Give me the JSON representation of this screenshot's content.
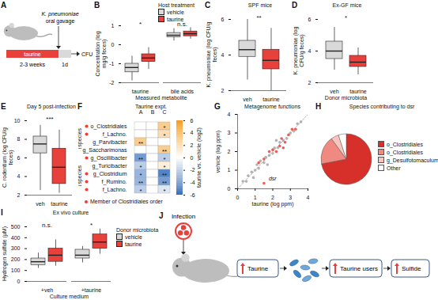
{
  "chart_data": [
    {
      "panel": "B",
      "type": "box",
      "xlabel": "Measured metabolite",
      "ylabel": "Concentration (log mg/g feces)",
      "categories": [
        "taurine",
        "bile acids"
      ],
      "series": [
        {
          "name": "vehicle",
          "color": "#d9d9d9",
          "stats": [
            [
              -1.9,
              -1.45,
              -1.2,
              -1.0,
              -0.6
            ],
            [
              0.2,
              0.4,
              0.5,
              0.62,
              0.85
            ]
          ]
        },
        {
          "name": "taurine",
          "color": "#e8413c",
          "stats": [
            [
              -1.3,
              -0.9,
              -0.7,
              -0.5,
              -0.15
            ],
            [
              0.3,
              0.45,
              0.58,
              0.7,
              0.9
            ]
          ]
        }
      ],
      "legend_title": "Host treatment",
      "legend": "top-right",
      "ylim": [
        -2,
        1
      ],
      "yticks": [
        -2,
        -1,
        0,
        1
      ],
      "annotations": [
        {
          "category": "taurine",
          "text": "*"
        },
        {
          "category": "bile acids",
          "text": "n.s."
        }
      ]
    },
    {
      "panel": "C",
      "type": "box",
      "title": "SPF mice",
      "ylabel": "K. pneumoniae (log CFU/g feces)",
      "categories": [
        "veh",
        "taurine"
      ],
      "colors": [
        "#d9d9d9",
        "#e8413c"
      ],
      "stats": [
        [
          2.6,
          3.9,
          4.3,
          4.8,
          6.0
        ],
        [
          2.0,
          3.2,
          3.7,
          4.3,
          5.5
        ]
      ],
      "ylim": [
        2,
        6
      ],
      "yticks": [
        2,
        4,
        6
      ],
      "annotations": [
        {
          "text": "**"
        }
      ]
    },
    {
      "panel": "D",
      "type": "box",
      "title": "Ex-GF mice",
      "xlabel": "Donor microbiota",
      "ylabel": "K. pneumoniae (log CFU/g feces)",
      "categories": [
        "veh",
        "taurine"
      ],
      "colors": [
        "#d9d9d9",
        "#e8413c"
      ],
      "stats": [
        [
          2.8,
          3.5,
          4.0,
          4.6,
          5.5
        ],
        [
          2.5,
          3.0,
          3.3,
          3.7,
          4.2
        ]
      ],
      "ylim": [
        2,
        6
      ],
      "yticks": [
        2,
        4,
        6
      ],
      "annotations": [
        {
          "text": "*"
        }
      ]
    },
    {
      "panel": "E",
      "type": "box",
      "title": "Day 5 post-infection",
      "ylabel": "C. rodentium (log CFU/g feces)",
      "categories": [
        "veh",
        "taurine"
      ],
      "colors": [
        "#d9d9d9",
        "#e8413c"
      ],
      "stats": [
        [
          2.5,
          6.5,
          7.5,
          8.3,
          9.5
        ],
        [
          2.2,
          3.2,
          5.0,
          7.0,
          9.0
        ]
      ],
      "ylim": [
        2,
        10
      ],
      "yticks": [
        2,
        4,
        6,
        8,
        10
      ],
      "annotations": [
        {
          "text": "***"
        }
      ]
    },
    {
      "panel": "F",
      "type": "heatmap",
      "title": "Taurine expt.",
      "x": [
        "A",
        "B",
        "C"
      ],
      "y": [
        "o_Clostridiales",
        "f_Lachno.",
        "g_Parvibacter",
        "g_Saccharimonas",
        "g_Oscillibacter",
        "g_Turicibacter",
        "g_Clostridium",
        "f_Rumino.",
        "f_Lachno."
      ],
      "values": [
        [
          0,
          0,
          3
        ],
        [
          0,
          0,
          2
        ],
        [
          3,
          0,
          0
        ],
        [
          0,
          0,
          3
        ],
        [
          -4,
          0,
          -2
        ],
        [
          -2,
          0,
          1
        ],
        [
          -3,
          0,
          -5
        ],
        [
          -3,
          0,
          -4
        ],
        [
          -2,
          0,
          -1
        ]
      ],
      "stars": [
        [
          null,
          null,
          "*"
        ],
        [
          null,
          null,
          "*"
        ],
        [
          "**",
          null,
          null
        ],
        [
          null,
          null,
          "**"
        ],
        [
          "**",
          null,
          "*"
        ],
        [
          "*",
          null,
          "*"
        ],
        [
          "*",
          null,
          "**"
        ],
        [
          "**",
          null,
          "**"
        ],
        [
          "*",
          null,
          "*"
        ]
      ],
      "members": [
        true,
        true,
        false,
        false,
        true,
        false,
        true,
        true,
        true
      ],
      "member_color": "#e8413c",
      "legend_label": "Member of Clostridiales order",
      "side_labels": [
        "↑species",
        "↓species"
      ],
      "colors": [
        "#2f6bbf",
        "#ffffff",
        "#f29b20"
      ],
      "colorbar": {
        "label": "taurine vs. vehicle (log2)",
        "range": [
          -6,
          6
        ],
        "ticks": [
          -6,
          -4,
          -2,
          0,
          2,
          4,
          6
        ]
      }
    },
    {
      "panel": "G",
      "type": "scatter",
      "title": "Metagenome functions",
      "xlabel": "taurine (log ppm)",
      "ylabel": "vehicle (log ppm)",
      "x": [
        0.3,
        0.5,
        0.6,
        0.8,
        1.0,
        1.1,
        1.2,
        1.3,
        1.5,
        1.6,
        1.8,
        2.0,
        2.1,
        2.3,
        2.4,
        2.6,
        2.8,
        3.0,
        3.2,
        3.4,
        3.6,
        0.9,
        1.7,
        2.2,
        1.2,
        1.5,
        1.8,
        2.0,
        2.2,
        2.4,
        2.5,
        2.7,
        2.9,
        3.1,
        3.3,
        2.6,
        1.5
      ],
      "y": [
        0.4,
        0.4,
        0.7,
        0.9,
        1.0,
        1.3,
        1.1,
        1.5,
        1.4,
        1.7,
        1.8,
        1.9,
        2.2,
        2.2,
        2.5,
        2.6,
        2.7,
        3.0,
        3.1,
        3.5,
        3.6,
        0.6,
        1.3,
        2.6,
        1.4,
        1.6,
        2.0,
        2.1,
        2.0,
        2.3,
        2.7,
        2.5,
        2.9,
        3.2,
        3.2,
        2.2,
        0.3
      ],
      "colors": [
        "#a6a6a6",
        "#a6a6a6",
        "#a6a6a6",
        "#a6a6a6",
        "#a6a6a6",
        "#a6a6a6",
        "#a6a6a6",
        "#a6a6a6",
        "#a6a6a6",
        "#a6a6a6",
        "#a6a6a6",
        "#a6a6a6",
        "#a6a6a6",
        "#a6a6a6",
        "#a6a6a6",
        "#a6a6a6",
        "#a6a6a6",
        "#a6a6a6",
        "#a6a6a6",
        "#a6a6a6",
        "#a6a6a6",
        "#a6a6a6",
        "#a6a6a6",
        "#a6a6a6",
        "#e8413c",
        "#e8413c",
        "#e8413c",
        "#e8413c",
        "#e8413c",
        "#e8413c",
        "#e8413c",
        "#e8413c",
        "#e8413c",
        "#e8413c",
        "#e8413c",
        "#e8413c",
        "#e8413c"
      ],
      "xlim": [
        0,
        4
      ],
      "xticks": [
        0,
        1,
        2,
        3,
        4
      ],
      "ylim": [
        0,
        4
      ],
      "yticks": [
        0,
        1,
        2,
        3,
        4
      ],
      "annotations": [
        {
          "text": "dsr",
          "x": 1.5,
          "y": 0.3
        }
      ]
    },
    {
      "panel": "H",
      "type": "pie",
      "title": "Species contributing to dsr",
      "categories": [
        "o_Clostridiales",
        "o_Clostridiales",
        "g_Desulfotomaculum",
        "Other"
      ],
      "values": [
        72,
        18,
        5,
        5
      ],
      "colors": [
        "#d7302a",
        "#f08a80",
        "#f7c4be",
        "#ffffff"
      ]
    },
    {
      "panel": "I",
      "type": "box",
      "title": "Ex vivo culture",
      "xlabel": "Culture medium",
      "ylabel": "Hydrogen sulfide (μM)",
      "categories": [
        "+veh",
        "+taurine"
      ],
      "series": [
        {
          "name": "vehicle",
          "color": "#d9d9d9",
          "stats": [
            [
              120,
              150,
              180,
              210,
              260
            ],
            [
              170,
              210,
              240,
              290,
              320
            ]
          ]
        },
        {
          "name": "taurine",
          "color": "#e8413c",
          "stats": [
            [
              140,
              180,
              240,
              300,
              380
            ],
            [
              250,
              300,
              360,
              430,
              480
            ]
          ]
        }
      ],
      "legend_title": "Donor microbiota",
      "legend": "right",
      "ylim": [
        0,
        500
      ],
      "yticks": [
        0,
        100,
        200,
        300,
        400,
        500
      ],
      "annotations": [
        {
          "category": "+veh",
          "text": "n.s."
        },
        {
          "category": "+taurine",
          "text": "*"
        }
      ]
    }
  ],
  "diagrams": [
    {
      "panel": "A",
      "pathogen": "K. pneumoniae",
      "route": "oral gavage",
      "treatment": "taurine",
      "duration": "2-3 weeks",
      "infection_duration": "1d",
      "readout": "CFU"
    },
    {
      "panel": "J",
      "infection": "Infection",
      "steps": [
        "Taurine",
        "Taurine users",
        "Sulfide"
      ]
    }
  ]
}
